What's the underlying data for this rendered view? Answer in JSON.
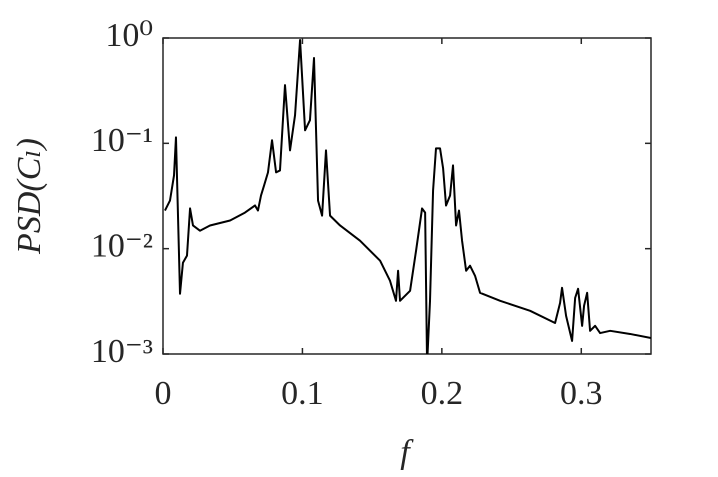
{
  "chart_data": {
    "type": "line",
    "xlabel": "f",
    "ylabel": "PSD(Cₗ)",
    "x": [
      0.0014,
      0.005,
      0.0079,
      0.0093,
      0.0122,
      0.0143,
      0.0172,
      0.0194,
      0.0215,
      0.0265,
      0.0337,
      0.0481,
      0.0588,
      0.066,
      0.0681,
      0.0703,
      0.0725,
      0.0753,
      0.0782,
      0.0811,
      0.0839,
      0.0875,
      0.0911,
      0.0947,
      0.0983,
      0.1019,
      0.1054,
      0.1083,
      0.1112,
      0.1141,
      0.1169,
      0.1198,
      0.127,
      0.1413,
      0.1557,
      0.1628,
      0.1671,
      0.1686,
      0.17,
      0.1772,
      0.1815,
      0.1858,
      0.188,
      0.1894,
      0.1915,
      0.1937,
      0.1958,
      0.1987,
      0.2009,
      0.203,
      0.2059,
      0.208,
      0.2102,
      0.2123,
      0.2145,
      0.2174,
      0.2202,
      0.2238,
      0.2274,
      0.2418,
      0.2633,
      0.2812,
      0.2848,
      0.2862,
      0.2891,
      0.2934,
      0.2956,
      0.2977,
      0.3006,
      0.302,
      0.3042,
      0.3063,
      0.3099,
      0.3135,
      0.3207,
      0.335,
      0.35
    ],
    "series": [
      {
        "color": "#000000",
        "values": [
          0.023,
          0.0286,
          0.0496,
          0.114,
          0.00373,
          0.00736,
          0.00858,
          0.0241,
          0.0166,
          0.0148,
          0.0166,
          0.0185,
          0.022,
          0.0257,
          0.023,
          0.032,
          0.0398,
          0.053,
          0.107,
          0.053,
          0.0553,
          0.357,
          0.0858,
          0.185,
          0.957,
          0.133,
          0.166,
          0.645,
          0.0286,
          0.0206,
          0.0858,
          0.0206,
          0.0166,
          0.0119,
          0.00769,
          0.00496,
          0.0032,
          0.00617,
          0.0032,
          0.00398,
          0.00957,
          0.0241,
          0.022,
          0.0008,
          0.0032,
          0.0357,
          0.0896,
          0.0896,
          0.0578,
          0.0257,
          0.032,
          0.0617,
          0.0166,
          0.023,
          0.0119,
          0.00617,
          0.00689,
          0.00553,
          0.00381,
          0.0032,
          0.00257,
          0.00197,
          0.00306,
          0.00425,
          0.0023,
          0.00133,
          0.00341,
          0.00416,
          0.00185,
          0.00287,
          0.00381,
          0.00166,
          0.00185,
          0.00158,
          0.00166,
          0.00155,
          0.00142
        ]
      }
    ],
    "xlim": [
      0,
      0.35
    ],
    "xticks": [
      0,
      0.1,
      0.2,
      0.3
    ],
    "ylim": [
      0.001,
      1
    ],
    "log_y": true,
    "yticks": [
      {
        "value": 0.001,
        "label": "10⁻³"
      },
      {
        "value": 0.01,
        "label": "10⁻²"
      },
      {
        "value": 0.1,
        "label": "10⁻¹"
      },
      {
        "value": 1,
        "label": "10⁰"
      }
    ],
    "grid": false
  }
}
